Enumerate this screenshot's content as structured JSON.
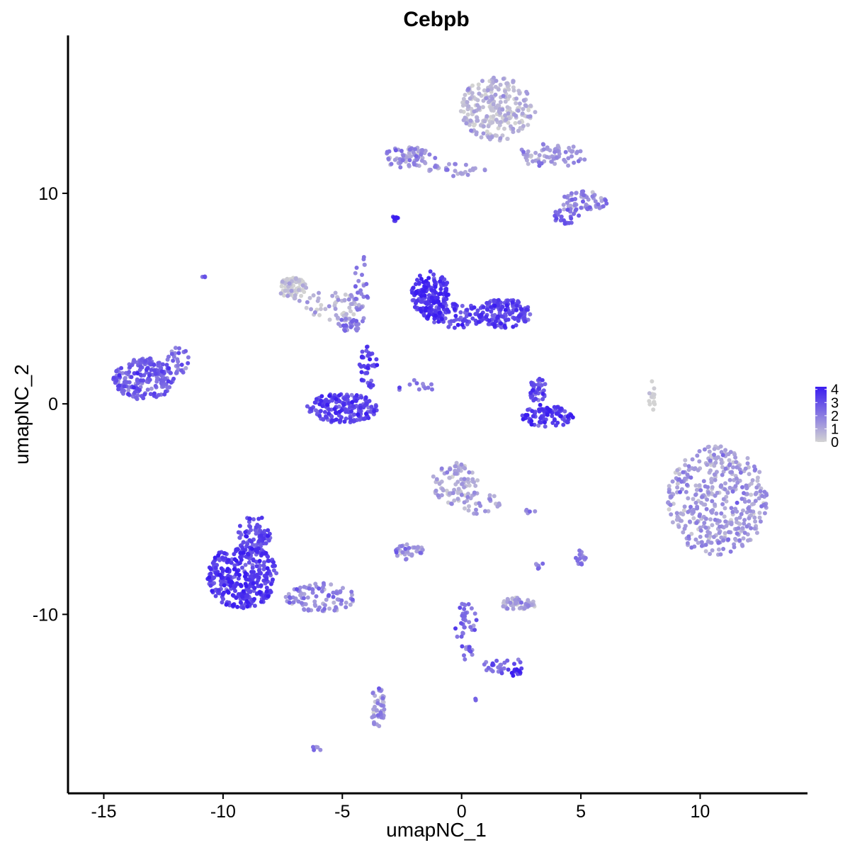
{
  "chart_data": {
    "type": "scatter",
    "title": "Cebpb",
    "xlabel": "umapNC_1",
    "ylabel": "umapNC_2",
    "xlim": [
      -16.5,
      14.5
    ],
    "ylim": [
      -18.5,
      17.5
    ],
    "x_ticks": [
      {
        "value": -15,
        "label": "-15"
      },
      {
        "value": -10,
        "label": "-10"
      },
      {
        "value": -5,
        "label": "-5"
      },
      {
        "value": 0,
        "label": "0"
      },
      {
        "value": 5,
        "label": "5"
      },
      {
        "value": 10,
        "label": "10"
      }
    ],
    "y_ticks": [
      {
        "value": 10,
        "label": "10"
      },
      {
        "value": 0,
        "label": "0"
      },
      {
        "value": -10,
        "label": "-10"
      }
    ],
    "color_scale": {
      "low_color": "#D3D3D3",
      "high_color": "#3A1CF0",
      "min": 0,
      "max": 4.2,
      "legend_ticks": [
        {
          "value": 4,
          "label": "4"
        },
        {
          "value": 3,
          "label": "3"
        },
        {
          "value": 2,
          "label": "2"
        },
        {
          "value": 1,
          "label": "1"
        },
        {
          "value": 0,
          "label": "0"
        }
      ]
    },
    "clusters": [
      {
        "cx": 1.5,
        "cy": 14.0,
        "rx": 1.6,
        "ry": 1.5,
        "n": 260,
        "expr": 0.5
      },
      {
        "cx": 3.8,
        "cy": 11.8,
        "rx": 1.5,
        "ry": 0.6,
        "n": 70,
        "expr": 1.3
      },
      {
        "cx": -2.2,
        "cy": 11.7,
        "rx": 1.1,
        "ry": 0.5,
        "n": 70,
        "expr": 1.4
      },
      {
        "cx": -0.3,
        "cy": 11.1,
        "rx": 1.3,
        "ry": 0.3,
        "n": 30,
        "expr": 1.3
      },
      {
        "cx": 5.1,
        "cy": 9.6,
        "rx": 1.0,
        "ry": 0.5,
        "n": 60,
        "expr": 1.5
      },
      {
        "cx": 4.4,
        "cy": 8.9,
        "rx": 0.6,
        "ry": 0.4,
        "n": 25,
        "expr": 2.4
      },
      {
        "cx": -2.8,
        "cy": 8.8,
        "rx": 0.15,
        "ry": 0.12,
        "n": 10,
        "expr": 3.6
      },
      {
        "cx": -7.1,
        "cy": 5.5,
        "rx": 0.6,
        "ry": 0.5,
        "n": 70,
        "expr": 0.15
      },
      {
        "cx": -5.5,
        "cy": 4.6,
        "rx": 1.4,
        "ry": 0.8,
        "n": 60,
        "expr": 0.8
      },
      {
        "cx": -4.8,
        "cy": 3.7,
        "rx": 0.5,
        "ry": 0.4,
        "n": 25,
        "expr": 1.8
      },
      {
        "cx": -4.2,
        "cy": 5.3,
        "rx": 0.3,
        "ry": 1.8,
        "n": 25,
        "expr": 1.8
      },
      {
        "cx": -1.3,
        "cy": 5.2,
        "rx": 0.8,
        "ry": 1.1,
        "n": 170,
        "expr": 3.5
      },
      {
        "cx": 1.8,
        "cy": 4.3,
        "rx": 1.1,
        "ry": 0.7,
        "n": 150,
        "expr": 3.1
      },
      {
        "cx": -0.3,
        "cy": 4.2,
        "rx": 1.3,
        "ry": 0.6,
        "n": 80,
        "expr": 3.2
      },
      {
        "cx": -13.3,
        "cy": 1.2,
        "rx": 1.3,
        "ry": 1.0,
        "n": 210,
        "expr": 2.6
      },
      {
        "cx": -11.9,
        "cy": 2.0,
        "rx": 0.5,
        "ry": 0.7,
        "n": 30,
        "expr": 2.0
      },
      {
        "cx": -5.0,
        "cy": -0.2,
        "rx": 1.5,
        "ry": 0.7,
        "n": 200,
        "expr": 3.1
      },
      {
        "cx": -3.9,
        "cy": 1.8,
        "rx": 0.4,
        "ry": 1.1,
        "n": 40,
        "expr": 3.0
      },
      {
        "cx": 3.6,
        "cy": -0.6,
        "rx": 1.1,
        "ry": 0.5,
        "n": 90,
        "expr": 3.4
      },
      {
        "cx": 3.2,
        "cy": 0.6,
        "rx": 0.35,
        "ry": 0.7,
        "n": 40,
        "expr": 3.0
      },
      {
        "cx": -1.9,
        "cy": 0.8,
        "rx": 1.0,
        "ry": 0.35,
        "n": 12,
        "expr": 2.0
      },
      {
        "cx": 8.0,
        "cy": 0.4,
        "rx": 0.15,
        "ry": 0.7,
        "n": 15,
        "expr": 0.3
      },
      {
        "cx": 10.7,
        "cy": -4.6,
        "rx": 2.1,
        "ry": 2.6,
        "n": 420,
        "expr": 1.2
      },
      {
        "cx": -0.3,
        "cy": -3.8,
        "rx": 1.0,
        "ry": 1.0,
        "n": 90,
        "expr": 0.9
      },
      {
        "cx": 0.8,
        "cy": -4.7,
        "rx": 0.8,
        "ry": 0.6,
        "n": 25,
        "expr": 1.1
      },
      {
        "cx": -9.2,
        "cy": -8.2,
        "rx": 1.5,
        "ry": 1.5,
        "n": 360,
        "expr": 3.3
      },
      {
        "cx": -8.7,
        "cy": -6.2,
        "rx": 0.7,
        "ry": 0.9,
        "n": 80,
        "expr": 3.0
      },
      {
        "cx": -5.9,
        "cy": -9.2,
        "rx": 1.5,
        "ry": 0.7,
        "n": 90,
        "expr": 1.6
      },
      {
        "cx": -2.2,
        "cy": -7.0,
        "rx": 0.6,
        "ry": 0.4,
        "n": 35,
        "expr": 1.4
      },
      {
        "cx": 2.4,
        "cy": -9.5,
        "rx": 0.8,
        "ry": 0.3,
        "n": 55,
        "expr": 0.8
      },
      {
        "cx": 0.2,
        "cy": -10.8,
        "rx": 0.5,
        "ry": 1.4,
        "n": 45,
        "expr": 2.2
      },
      {
        "cx": 1.8,
        "cy": -12.4,
        "rx": 1.0,
        "ry": 0.4,
        "n": 25,
        "expr": 2.3
      },
      {
        "cx": 2.3,
        "cy": -12.8,
        "rx": 0.2,
        "ry": 0.2,
        "n": 12,
        "expr": 3.8
      },
      {
        "cx": -3.5,
        "cy": -14.4,
        "rx": 0.3,
        "ry": 1.0,
        "n": 50,
        "expr": 1.2
      },
      {
        "cx": 5.0,
        "cy": -7.3,
        "rx": 0.25,
        "ry": 0.35,
        "n": 15,
        "expr": 2.0
      },
      {
        "cx": 3.3,
        "cy": -7.7,
        "rx": 0.2,
        "ry": 0.2,
        "n": 6,
        "expr": 1.8
      },
      {
        "cx": 2.9,
        "cy": -5.1,
        "rx": 0.2,
        "ry": 0.15,
        "n": 5,
        "expr": 1.5
      },
      {
        "cx": -6.1,
        "cy": -16.4,
        "rx": 0.2,
        "ry": 0.15,
        "n": 6,
        "expr": 1.5
      },
      {
        "cx": -10.8,
        "cy": 6.0,
        "rx": 0.1,
        "ry": 0.1,
        "n": 4,
        "expr": 2.0
      },
      {
        "cx": 0.6,
        "cy": -14.0,
        "rx": 0.1,
        "ry": 0.1,
        "n": 4,
        "expr": 2.0
      }
    ]
  }
}
